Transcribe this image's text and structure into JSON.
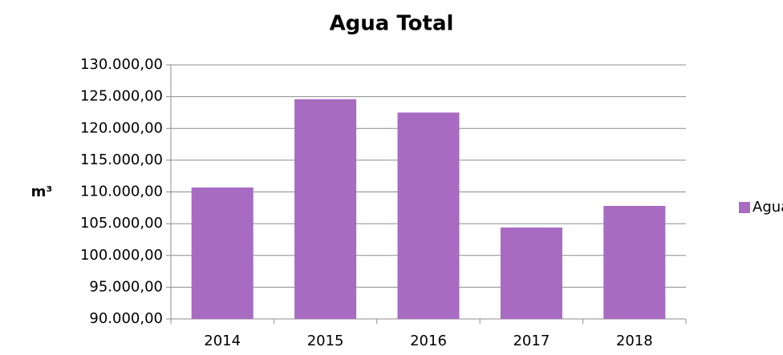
{
  "chart_data": {
    "type": "bar",
    "title": "Agua Total",
    "y_label": "m³",
    "categories": [
      "2014",
      "2015",
      "2016",
      "2017",
      "2018"
    ],
    "series": [
      {
        "name": "Agua",
        "color": "#a86bc2",
        "values": [
          110700,
          124600,
          122500,
          104400,
          107800
        ]
      }
    ],
    "ylim": [
      90000,
      130000
    ],
    "yticks": [
      {
        "value": 90000,
        "label": "90.000,00"
      },
      {
        "value": 95000,
        "label": "95.000,00"
      },
      {
        "value": 100000,
        "label": "100.000,00"
      },
      {
        "value": 105000,
        "label": "105.000,00"
      },
      {
        "value": 110000,
        "label": "110.000,00"
      },
      {
        "value": 115000,
        "label": "115.000,00"
      },
      {
        "value": 120000,
        "label": "120.000,00"
      },
      {
        "value": 125000,
        "label": "125.000,00"
      },
      {
        "value": 130000,
        "label": "130.000,00"
      }
    ],
    "grid": true,
    "legend": "right"
  }
}
